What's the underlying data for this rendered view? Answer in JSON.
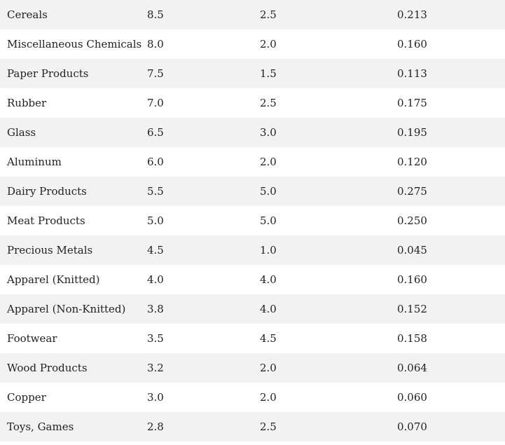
{
  "table": {
    "rows": [
      {
        "industry": "Cereals",
        "v1": "8.5",
        "v2": "2.5",
        "v3": "0.213"
      },
      {
        "industry": "Miscellaneous Chemicals",
        "v1": "8.0",
        "v2": "2.0",
        "v3": "0.160"
      },
      {
        "industry": "Paper Products",
        "v1": "7.5",
        "v2": "1.5",
        "v3": "0.113"
      },
      {
        "industry": "Rubber",
        "v1": "7.0",
        "v2": "2.5",
        "v3": "0.175"
      },
      {
        "industry": "Glass",
        "v1": "6.5",
        "v2": "3.0",
        "v3": "0.195"
      },
      {
        "industry": "Aluminum",
        "v1": "6.0",
        "v2": "2.0",
        "v3": "0.120"
      },
      {
        "industry": "Dairy Products",
        "v1": "5.5",
        "v2": "5.0",
        "v3": "0.275"
      },
      {
        "industry": "Meat Products",
        "v1": "5.0",
        "v2": "5.0",
        "v3": "0.250"
      },
      {
        "industry": "Precious Metals",
        "v1": "4.5",
        "v2": "1.0",
        "v3": "0.045"
      },
      {
        "industry": "Apparel (Knitted)",
        "v1": "4.0",
        "v2": "4.0",
        "v3": "0.160"
      },
      {
        "industry": "Apparel (Non-Knitted)",
        "v1": "3.8",
        "v2": "4.0",
        "v3": "0.152"
      },
      {
        "industry": "Footwear",
        "v1": "3.5",
        "v2": "4.5",
        "v3": "0.158"
      },
      {
        "industry": "Wood Products",
        "v1": "3.2",
        "v2": "2.0",
        "v3": "0.064"
      },
      {
        "industry": "Copper",
        "v1": "3.0",
        "v2": "2.0",
        "v3": "0.060"
      },
      {
        "industry": "Toys, Games",
        "v1": "2.8",
        "v2": "2.5",
        "v3": "0.070"
      }
    ]
  },
  "colors": {
    "stripe": "#f2f2f2",
    "background": "#ffffff",
    "text": "#222222"
  }
}
